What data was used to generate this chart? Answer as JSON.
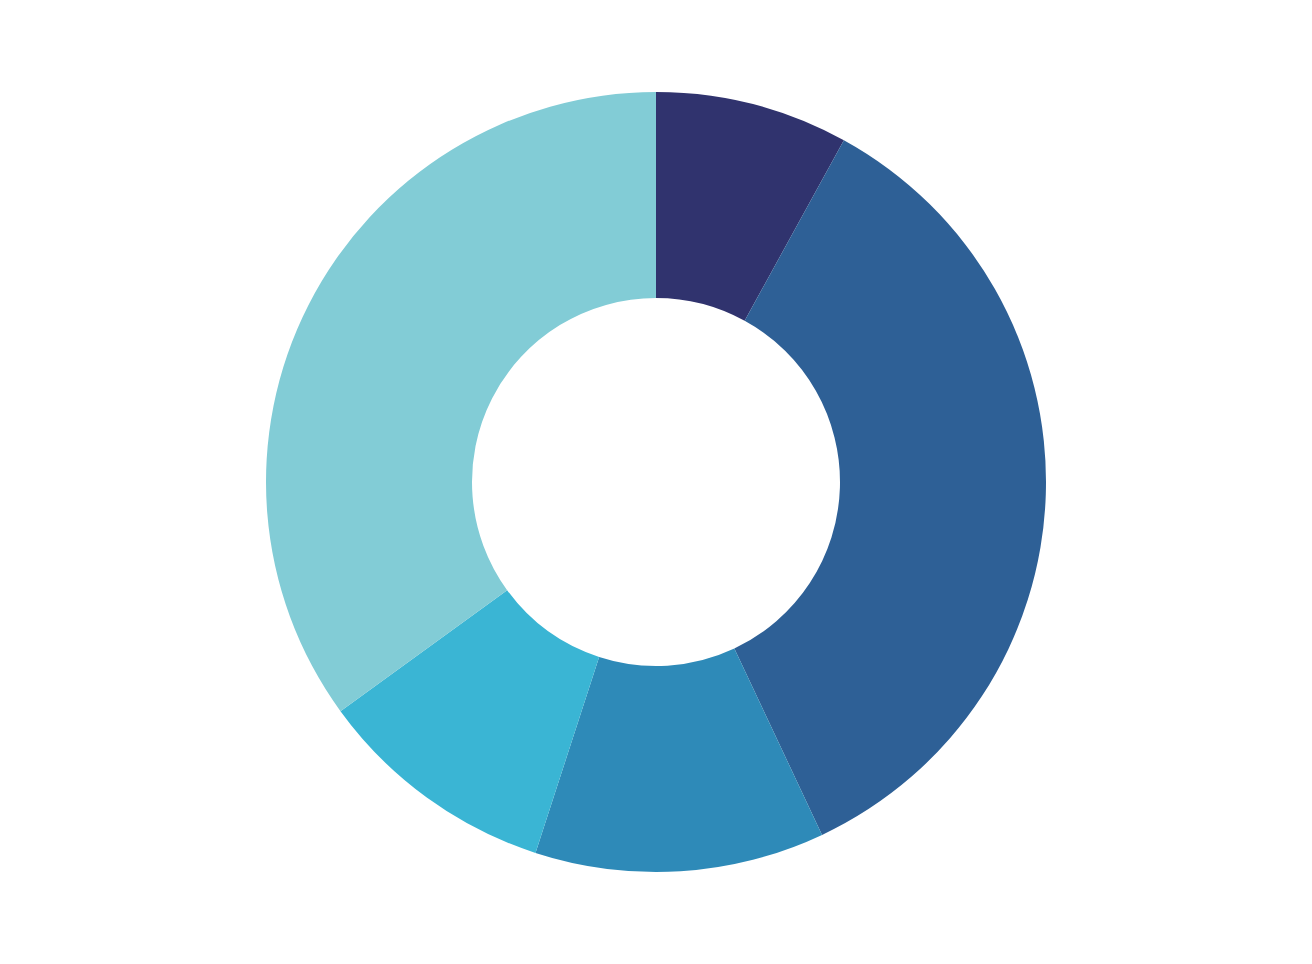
{
  "chart_data": {
    "type": "donut",
    "categories": [
      null,
      null,
      null,
      null,
      null
    ],
    "values": [
      8,
      35,
      12,
      10,
      35
    ],
    "colors": [
      "#30336e",
      "#2e6096",
      "#2e8ab8",
      "#3ab5d4",
      "#82ccd6"
    ]
  }
}
